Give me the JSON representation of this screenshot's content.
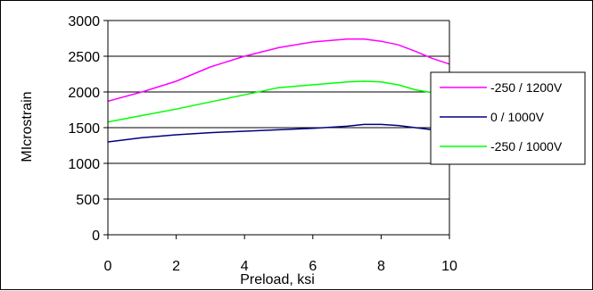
{
  "chart_data": {
    "type": "line",
    "xlabel": "Preload, ksi",
    "ylabel": "MIcrostrain",
    "xlim": [
      0,
      10
    ],
    "ylim": [
      0,
      3000
    ],
    "xticks": [
      0,
      2,
      4,
      6,
      8,
      10
    ],
    "yticks": [
      0,
      500,
      1000,
      1500,
      2000,
      2500,
      3000
    ],
    "grid": "horizontal major",
    "legend_position": "right",
    "series": [
      {
        "name": "-250 / 1200V",
        "color": "#ff00ff",
        "x": [
          0,
          1,
          2,
          3,
          4,
          5,
          6,
          6.5,
          7,
          7.5,
          8,
          8.5,
          9,
          9.5,
          10
        ],
        "y": [
          1870,
          2000,
          2150,
          2350,
          2500,
          2620,
          2700,
          2720,
          2740,
          2740,
          2710,
          2660,
          2570,
          2470,
          2390
        ]
      },
      {
        "name": "0 / 1000V",
        "color": "#000080",
        "x": [
          0,
          1,
          2,
          3,
          4,
          5,
          6,
          7,
          7.5,
          8,
          8.5,
          9,
          9.5,
          10
        ],
        "y": [
          1300,
          1360,
          1400,
          1430,
          1450,
          1470,
          1490,
          1520,
          1545,
          1545,
          1530,
          1500,
          1470,
          1430
        ]
      },
      {
        "name": "-250 / 1000V",
        "color": "#00ff00",
        "x": [
          0,
          1,
          2,
          3,
          4,
          5,
          6,
          7,
          7.5,
          8,
          8.5,
          9,
          9.5,
          10
        ],
        "y": [
          1580,
          1670,
          1760,
          1860,
          1960,
          2060,
          2100,
          2140,
          2150,
          2140,
          2100,
          2030,
          1990,
          1970
        ]
      }
    ]
  }
}
